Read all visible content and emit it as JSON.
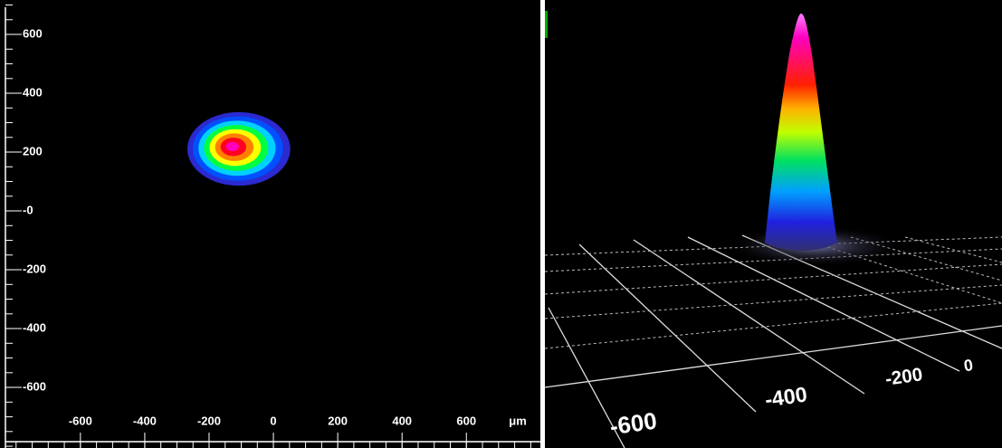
{
  "chart_data": [
    {
      "type": "contour",
      "xticks": [
        -600,
        -400,
        -200,
        0,
        200,
        400,
        600
      ],
      "yticks": [
        600,
        400,
        200,
        {
          "value": 0,
          "label": "-0"
        },
        -200,
        -400,
        -600
      ],
      "xlim": [
        -850,
        830
      ],
      "ylim": [
        -806,
        717
      ],
      "x_unit": "μm",
      "beam": {
        "x": -130,
        "y": 220,
        "rx": 160,
        "ry": 125
      },
      "colors": [
        "#2a2ad0",
        "#0050ff",
        "#00d0ff",
        "#00ff40",
        "#ffff00",
        "#ff8000",
        "#ff0020",
        "#ff00c0"
      ]
    },
    {
      "type": "surface",
      "xticks": [
        -600,
        -400,
        -200,
        0
      ]
    }
  ]
}
